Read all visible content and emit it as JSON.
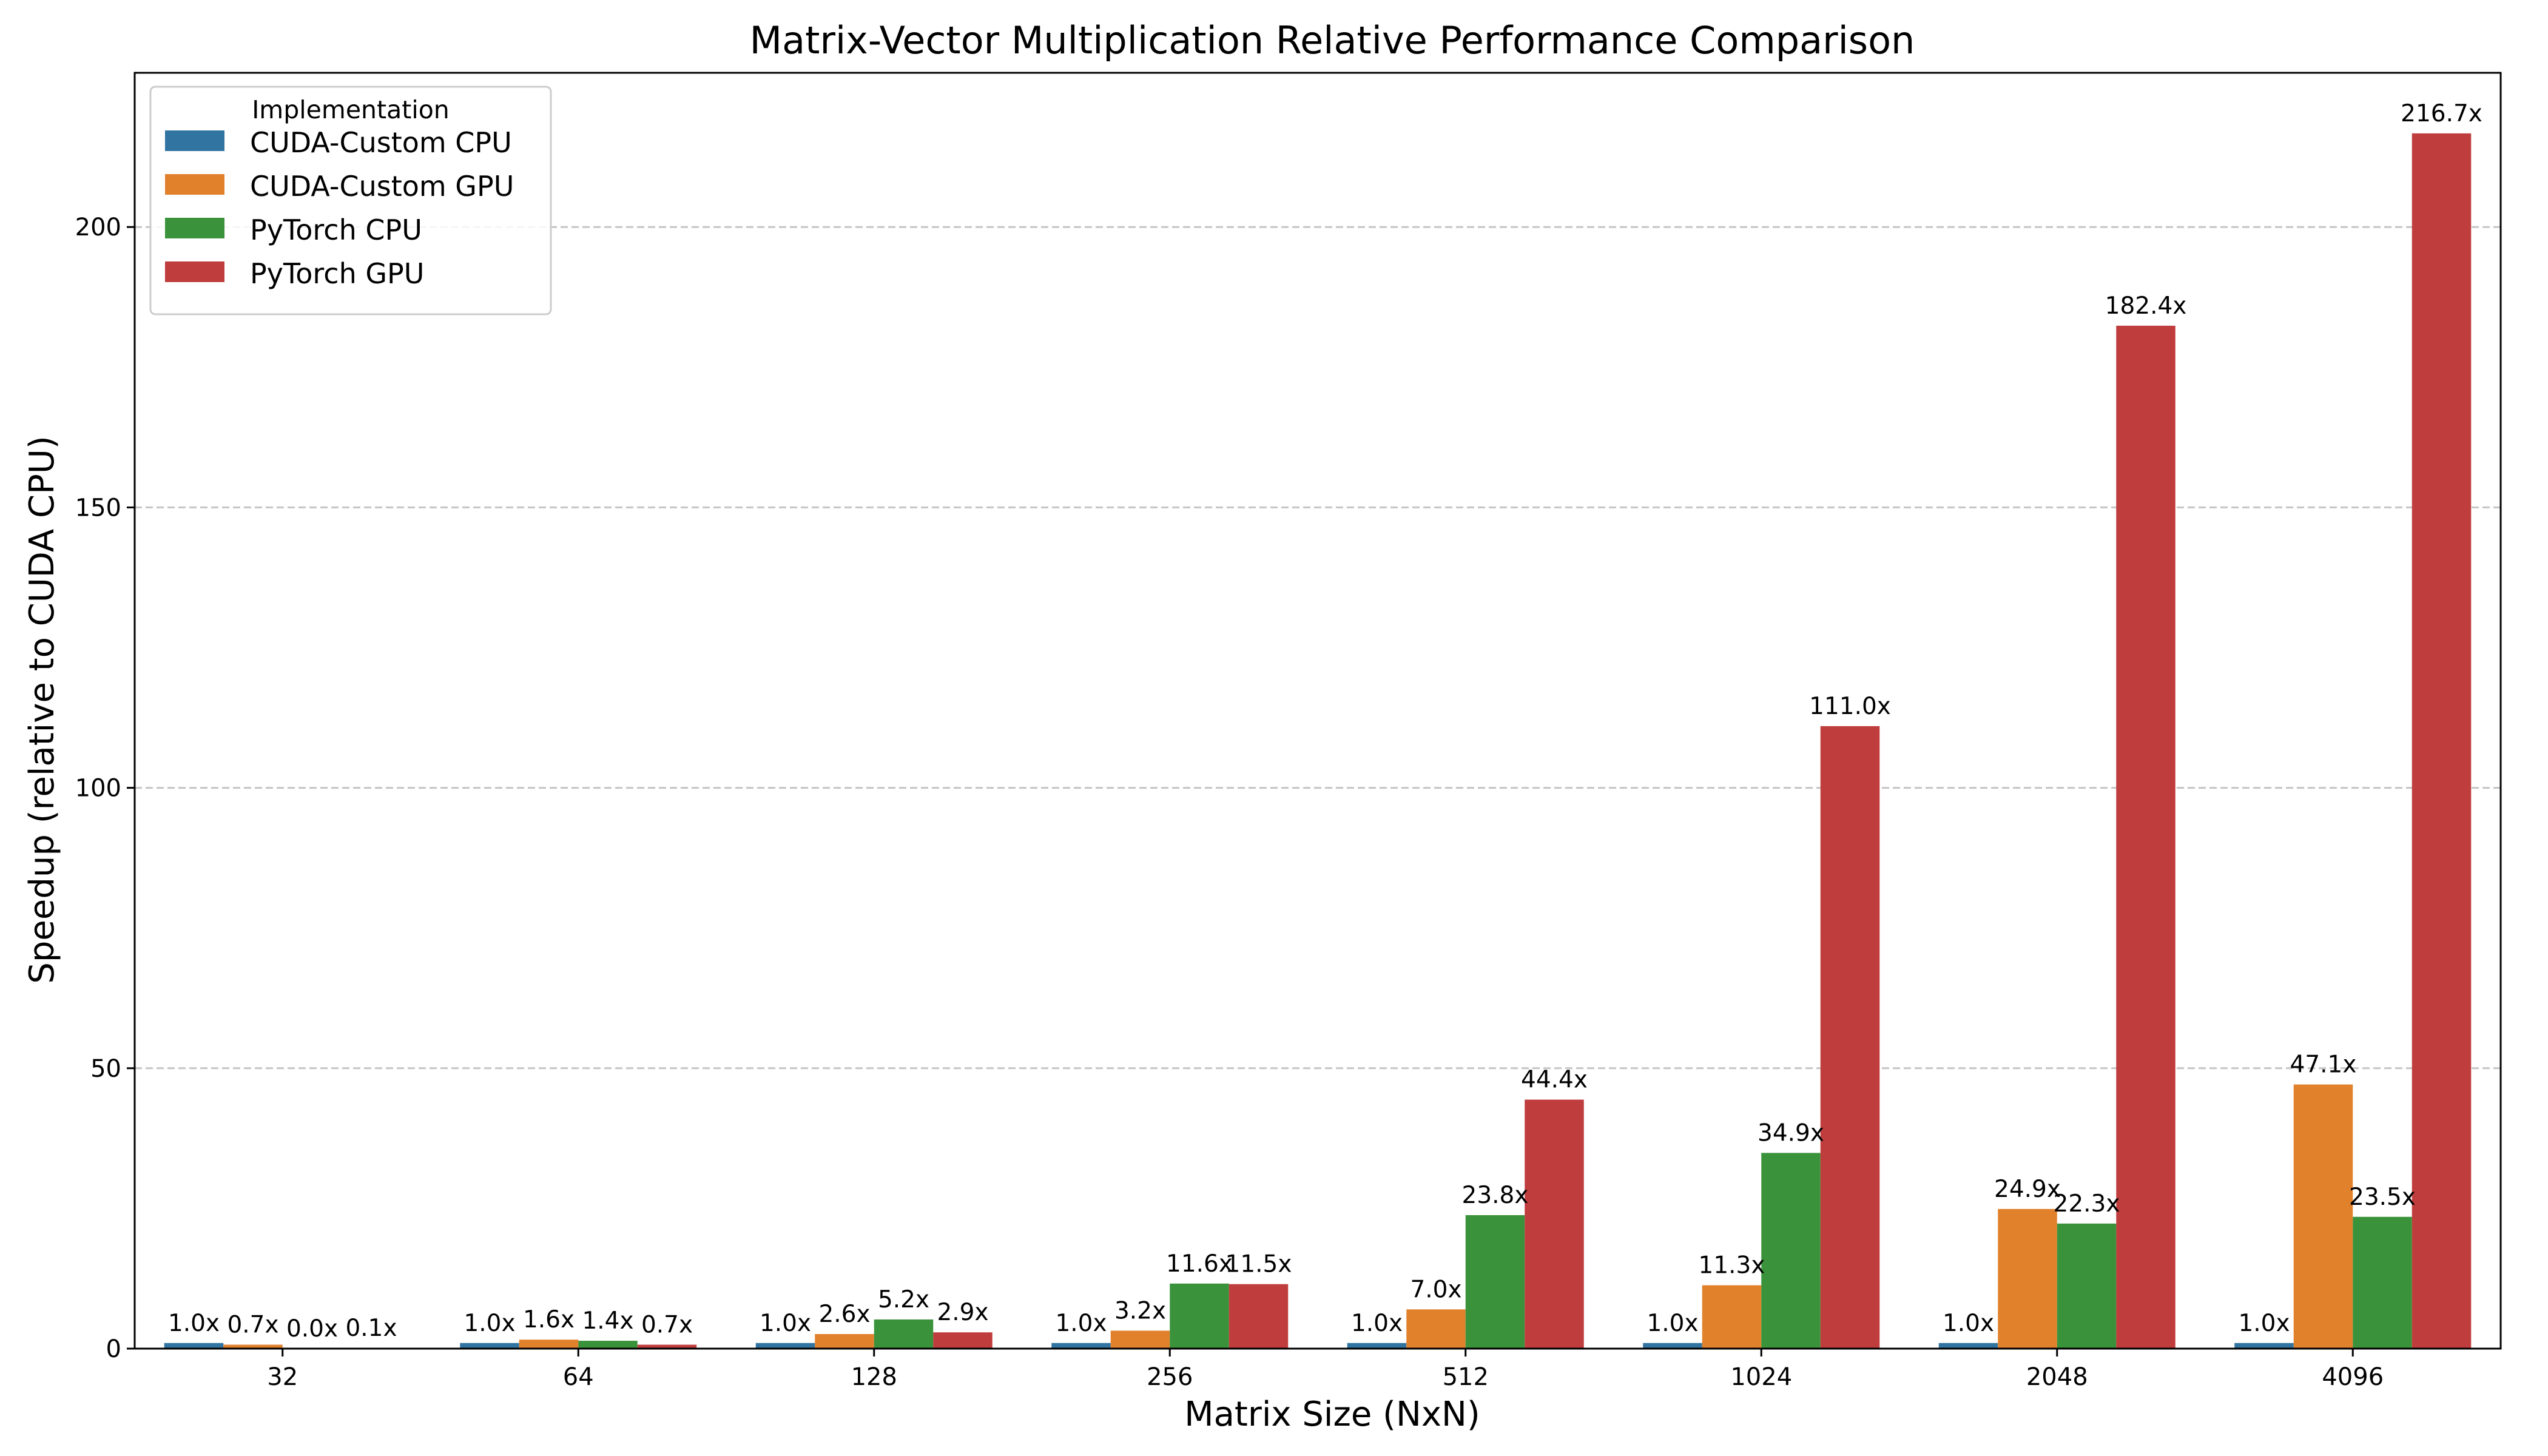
{
  "chart_data": {
    "type": "bar",
    "title": "Matrix-Vector Multiplication Relative Performance Comparison",
    "xlabel": "Matrix Size (NxN)",
    "ylabel": "Speedup (relative to CUDA CPU)",
    "ylim": [
      0,
      227.5
    ],
    "yticks": [
      0,
      50,
      100,
      150,
      200
    ],
    "grid": "y-dashed",
    "legend": {
      "title": "Implementation",
      "placement": "top-left"
    },
    "categories": [
      "32",
      "64",
      "128",
      "256",
      "512",
      "1024",
      "2048",
      "4096"
    ],
    "series": [
      {
        "name": "CUDA-Custom CPU",
        "color": "#3274a1",
        "values": [
          1.0,
          1.0,
          1.0,
          1.0,
          1.0,
          1.0,
          1.0,
          1.0
        ],
        "labels": [
          "1.0x",
          "1.0x",
          "1.0x",
          "1.0x",
          "1.0x",
          "1.0x",
          "1.0x",
          "1.0x"
        ]
      },
      {
        "name": "CUDA-Custom GPU",
        "color": "#e1812c",
        "values": [
          0.7,
          1.6,
          2.6,
          3.2,
          7.0,
          11.3,
          24.9,
          47.1
        ],
        "labels": [
          "0.7x",
          "1.6x",
          "2.6x",
          "3.2x",
          "7.0x",
          "11.3x",
          "24.9x",
          "47.1x"
        ]
      },
      {
        "name": "PyTorch CPU",
        "color": "#3a923a",
        "values": [
          0.0,
          1.4,
          5.2,
          11.6,
          23.8,
          34.9,
          22.3,
          23.5
        ],
        "labels": [
          "0.0x",
          "1.4x",
          "5.2x",
          "11.6x",
          "23.8x",
          "34.9x",
          "22.3x",
          "23.5x"
        ]
      },
      {
        "name": "PyTorch GPU",
        "color": "#c03d3e",
        "values": [
          0.1,
          0.7,
          2.9,
          11.5,
          44.4,
          111.0,
          182.4,
          216.7
        ],
        "labels": [
          "0.1x",
          "0.7x",
          "2.9x",
          "11.5x",
          "44.4x",
          "111.0x",
          "182.4x",
          "216.7x"
        ]
      }
    ]
  }
}
